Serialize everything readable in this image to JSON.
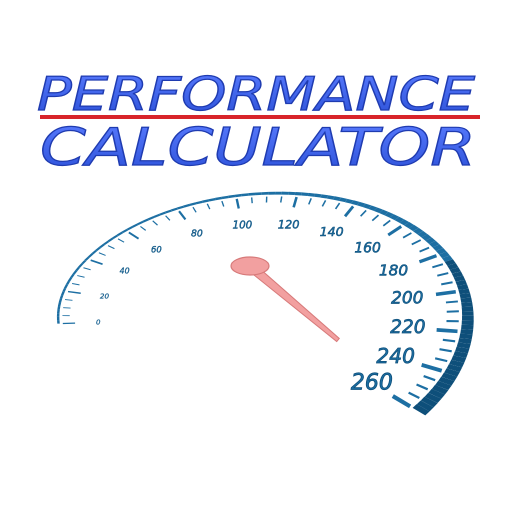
{
  "title": {
    "line1": "PERFORMANCE",
    "line2": "CALCULATOR"
  },
  "gauge": {
    "labels": [
      "0",
      "20",
      "40",
      "60",
      "80",
      "100",
      "120",
      "140",
      "160",
      "180",
      "200",
      "220",
      "240",
      "260"
    ],
    "needle_value": 248,
    "max_value": 260,
    "unit": ""
  },
  "colors": {
    "title_fill": "#3b5fe0",
    "title_outline": "#1f3bb0",
    "underline": "#d8242a",
    "gauge_blue": "#1d6fa3",
    "gauge_dark": "#0e4f7a",
    "needle_fill": "#f2a0a0",
    "needle_stroke": "#d77a7a",
    "background": "#ffffff"
  }
}
